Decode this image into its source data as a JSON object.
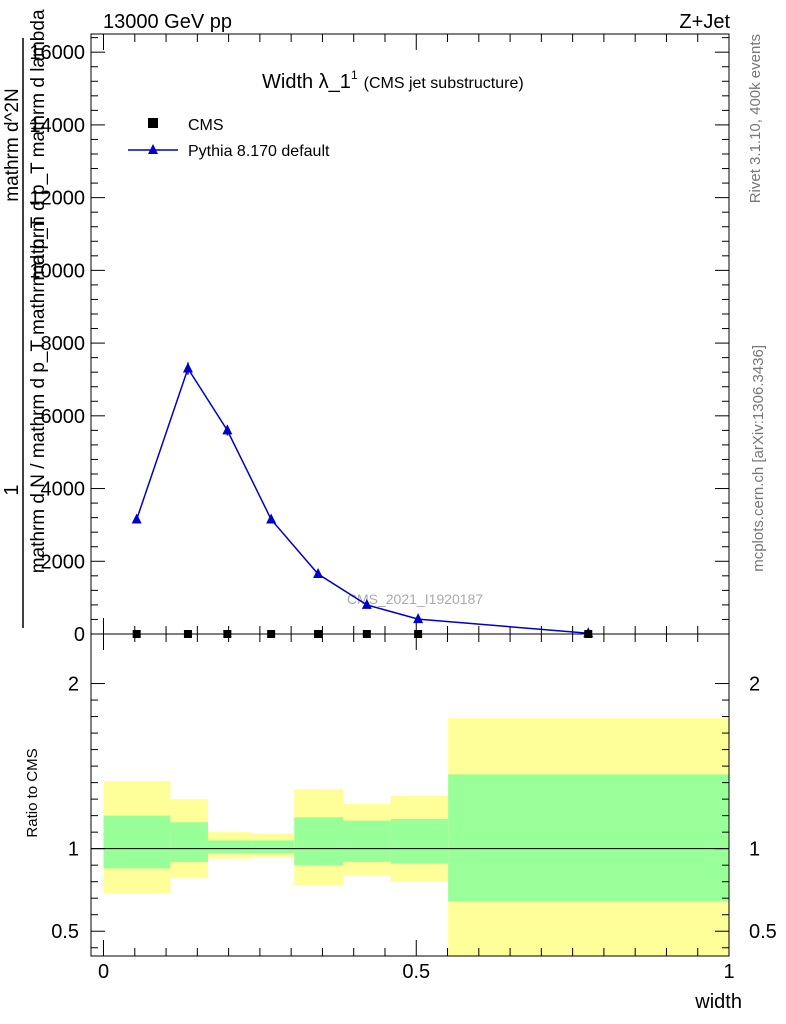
{
  "header": {
    "left": "13000 GeV pp",
    "right": "Z+Jet"
  },
  "side_text": {
    "top": "Rivet 3.1.10,  400k events",
    "bottom": "mcplots.cern.ch [arXiv:1306.3436]"
  },
  "watermark": "CMS_2021_I1920187",
  "chart_data": [
    {
      "type": "line",
      "title": "Width λ_1",
      "title_sup": "1",
      "subtitle": "(CMS jet substructure)",
      "xlabel": "width",
      "ylabel_numerator": "1",
      "ylabel_denominator": "mathrm d N / mathrm d p_T mathrm d p_T",
      "ylabel_numerator2": "mathrm d^2N",
      "ylabel_denominator2": "mathrm d p_T mathrm d lambda",
      "xlim": [
        -0.02,
        1.0
      ],
      "ylim": [
        0,
        16500
      ],
      "yticks": [
        0,
        2000,
        4000,
        6000,
        8000,
        10000,
        12000,
        14000,
        16000
      ],
      "ytick_labels": [
        "0",
        "2000",
        "4000",
        "6000",
        "8000",
        "10000",
        "12000",
        "14000",
        "16000"
      ],
      "legend_position": "top-left",
      "series": [
        {
          "name": "CMS",
          "marker": "square",
          "color": "#000000",
          "x": [
            0.053,
            0.135,
            0.198,
            0.268,
            0.343,
            0.421,
            0.503,
            0.775
          ],
          "y": [
            0,
            0,
            0,
            0,
            0,
            0,
            0,
            0
          ]
        },
        {
          "name": "Pythia 8.170 default",
          "marker": "triangle",
          "color": "#0000cc",
          "x": [
            0.053,
            0.135,
            0.198,
            0.268,
            0.343,
            0.421,
            0.503,
            0.775
          ],
          "y": [
            3150,
            7300,
            5600,
            3150,
            1650,
            800,
            410,
            20
          ],
          "yerr": [
            0,
            170,
            140,
            0,
            0,
            0,
            0,
            0
          ]
        }
      ]
    },
    {
      "type": "area",
      "ylabel": "Ratio to CMS",
      "xlabel": "width",
      "xlim": [
        -0.02,
        1.0
      ],
      "ylim": [
        0.35,
        2.3
      ],
      "xticks": [
        0,
        0.5,
        1
      ],
      "xtick_labels": [
        "0",
        "0.5",
        "1"
      ],
      "yticks": [
        0.5,
        1,
        2
      ],
      "ytick_labels": [
        "0.5",
        "1",
        "2"
      ],
      "reference_line": 1,
      "bands": {
        "bin_edges": [
          0.0,
          0.107,
          0.167,
          0.237,
          0.305,
          0.383,
          0.459,
          0.551,
          1.0
        ],
        "green_low": [
          0.88,
          0.92,
          0.97,
          0.97,
          0.9,
          0.92,
          0.91,
          0.68
        ],
        "green_high": [
          1.2,
          1.16,
          1.05,
          1.05,
          1.19,
          1.17,
          1.18,
          1.45
        ],
        "yellow_low": [
          0.73,
          0.82,
          0.94,
          0.95,
          0.78,
          0.84,
          0.8,
          0.35
        ],
        "yellow_high": [
          1.41,
          1.3,
          1.1,
          1.09,
          1.36,
          1.27,
          1.32,
          1.79
        ],
        "green_color": "#99ff99",
        "yellow_color": "#ffff99"
      }
    }
  ]
}
